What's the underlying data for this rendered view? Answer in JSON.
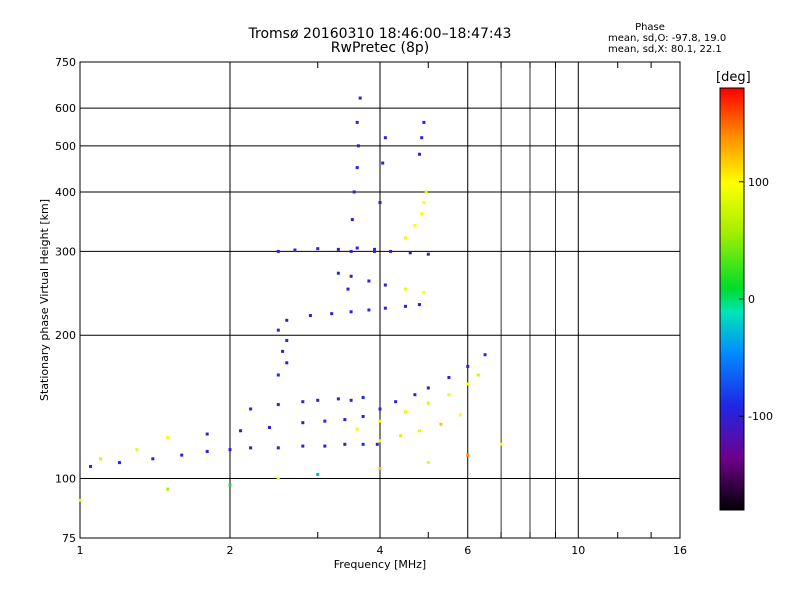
{
  "title": "Tromsø 20160310 18:46:00–18:47:43",
  "subtitle": "RwPretec (8p)",
  "phase_box": {
    "heading": "Phase",
    "line_o": "mean, sd,O: -97.8, 19.0",
    "line_x": "mean, sd,X:  80.1, 22.1"
  },
  "colorbar": {
    "unit": "[deg]",
    "ticks": [
      100,
      0,
      -100
    ],
    "range": [
      -180,
      180
    ],
    "colormap": "rainbow (black-purple-blue-cyan-green-yellow-orange-red)"
  },
  "chart_data": {
    "type": "scatter",
    "title": "Tromsø 20160310 18:46:00–18:47:43",
    "subtitle": "RwPretec (8p)",
    "xlabel": "Frequency [MHz]",
    "ylabel": "Stationary phase Virtual Height [km]",
    "xscale": "log",
    "yscale": "log",
    "xlim": [
      1,
      16
    ],
    "ylim": [
      75,
      750
    ],
    "xticks": [
      1,
      2,
      4,
      6,
      10,
      16
    ],
    "yticks": [
      75,
      100,
      200,
      300,
      400,
      500,
      600,
      750
    ],
    "grid": true,
    "color_encoding": "phase [deg]",
    "series": [
      {
        "x": [
          1.05,
          1.2,
          1.4,
          1.6,
          1.8,
          2.0,
          2.2,
          2.5,
          2.8,
          3.1,
          3.4,
          3.7,
          3.95
        ],
        "y": [
          106,
          108,
          110,
          112,
          114,
          115,
          116,
          116,
          117,
          117,
          118,
          118,
          118
        ],
        "phase": [
          -95,
          -90,
          -100,
          -100,
          -95,
          -100,
          -100,
          -95,
          -100,
          -95,
          -100,
          -90,
          -95
        ]
      },
      {
        "x": [
          1.1,
          1.3,
          1.5,
          1.8,
          2.1,
          2.4,
          2.8,
          3.1,
          3.4,
          3.7
        ],
        "y": [
          110,
          115,
          122,
          124,
          126,
          128,
          131,
          132,
          133,
          135
        ],
        "phase": [
          80,
          90,
          100,
          -100,
          -110,
          -100,
          -100,
          -95,
          -100,
          -95
        ]
      },
      {
        "x": [
          2.2,
          2.5,
          2.8,
          3.0,
          3.3,
          3.5,
          3.7
        ],
        "y": [
          140,
          143,
          145,
          146,
          147,
          146,
          148
        ],
        "phase": [
          -95,
          -100,
          -100,
          -95,
          -100,
          -95,
          -90
        ]
      },
      {
        "x": [
          4.0,
          4.3,
          4.7,
          5.0,
          5.5,
          6.0,
          6.5
        ],
        "y": [
          140,
          145,
          150,
          155,
          163,
          172,
          182
        ],
        "phase": [
          -95,
          -100,
          -90,
          -95,
          -100,
          -95,
          -90
        ]
      },
      {
        "x": [
          3.6,
          4.0,
          4.5,
          5.0,
          5.5,
          6.0,
          6.3
        ],
        "y": [
          127,
          132,
          138,
          144,
          150,
          158,
          165
        ],
        "phase": [
          95,
          100,
          90,
          85,
          95,
          100,
          80
        ]
      },
      {
        "x": [
          4.0,
          4.4,
          4.8,
          5.3,
          5.8
        ],
        "y": [
          120,
          123,
          126,
          130,
          136
        ],
        "phase": [
          100,
          110,
          90,
          120,
          100
        ]
      },
      {
        "x": [
          2.5,
          2.6,
          2.55,
          2.6,
          2.5,
          2.6
        ],
        "y": [
          165,
          175,
          185,
          195,
          205,
          215
        ],
        "phase": [
          -90,
          -100,
          -95,
          -90,
          -100,
          -95
        ]
      },
      {
        "x": [
          2.5,
          2.7,
          3.0,
          3.3,
          3.6,
          3.9,
          4.2,
          4.6,
          5.0
        ],
        "y": [
          300,
          302,
          304,
          303,
          305,
          303,
          300,
          298,
          296
        ],
        "phase": [
          -95,
          -100,
          -95,
          -100,
          -100,
          -90,
          -95,
          -100,
          -95
        ]
      },
      {
        "x": [
          3.3,
          3.5,
          3.8,
          4.1,
          4.5,
          4.9
        ],
        "y": [
          270,
          266,
          260,
          255,
          250,
          246
        ],
        "phase": [
          -90,
          -100,
          -95,
          -100,
          90,
          100
        ]
      },
      {
        "x": [
          2.9,
          3.2,
          3.5,
          3.8,
          4.1,
          4.5,
          4.8
        ],
        "y": [
          220,
          222,
          224,
          226,
          228,
          230,
          232
        ],
        "phase": [
          -95,
          -100,
          -95,
          -90,
          -100,
          -95,
          -100
        ]
      },
      {
        "x": [
          3.45,
          3.5,
          3.52,
          3.55,
          3.6,
          3.62,
          3.6,
          3.65
        ],
        "y": [
          250,
          300,
          350,
          400,
          450,
          500,
          560,
          630
        ],
        "phase": [
          -100,
          -95,
          -100,
          -90,
          -95,
          -100,
          -95,
          -100
        ]
      },
      {
        "x": [
          3.9,
          4.0,
          4.05,
          4.1
        ],
        "y": [
          300,
          380,
          460,
          520
        ],
        "phase": [
          -95,
          -100,
          -95,
          -100
        ]
      },
      {
        "x": [
          4.8,
          4.85,
          4.9
        ],
        "y": [
          480,
          520,
          560
        ],
        "phase": [
          -100,
          -95,
          -100
        ]
      },
      {
        "x": [
          4.5,
          4.7,
          4.85,
          4.9,
          4.95
        ],
        "y": [
          320,
          340,
          360,
          380,
          400
        ],
        "phase": [
          90,
          100,
          95,
          100,
          85
        ]
      },
      {
        "x": [
          1.0,
          1.5,
          2.0,
          2.5,
          3.0,
          4.0,
          5.0,
          6.0,
          7.0
        ],
        "y": [
          90,
          95,
          97,
          100,
          102,
          105,
          108,
          112,
          118
        ],
        "phase": [
          90,
          60,
          20,
          100,
          -30,
          120,
          90,
          140,
          100
        ]
      }
    ]
  }
}
